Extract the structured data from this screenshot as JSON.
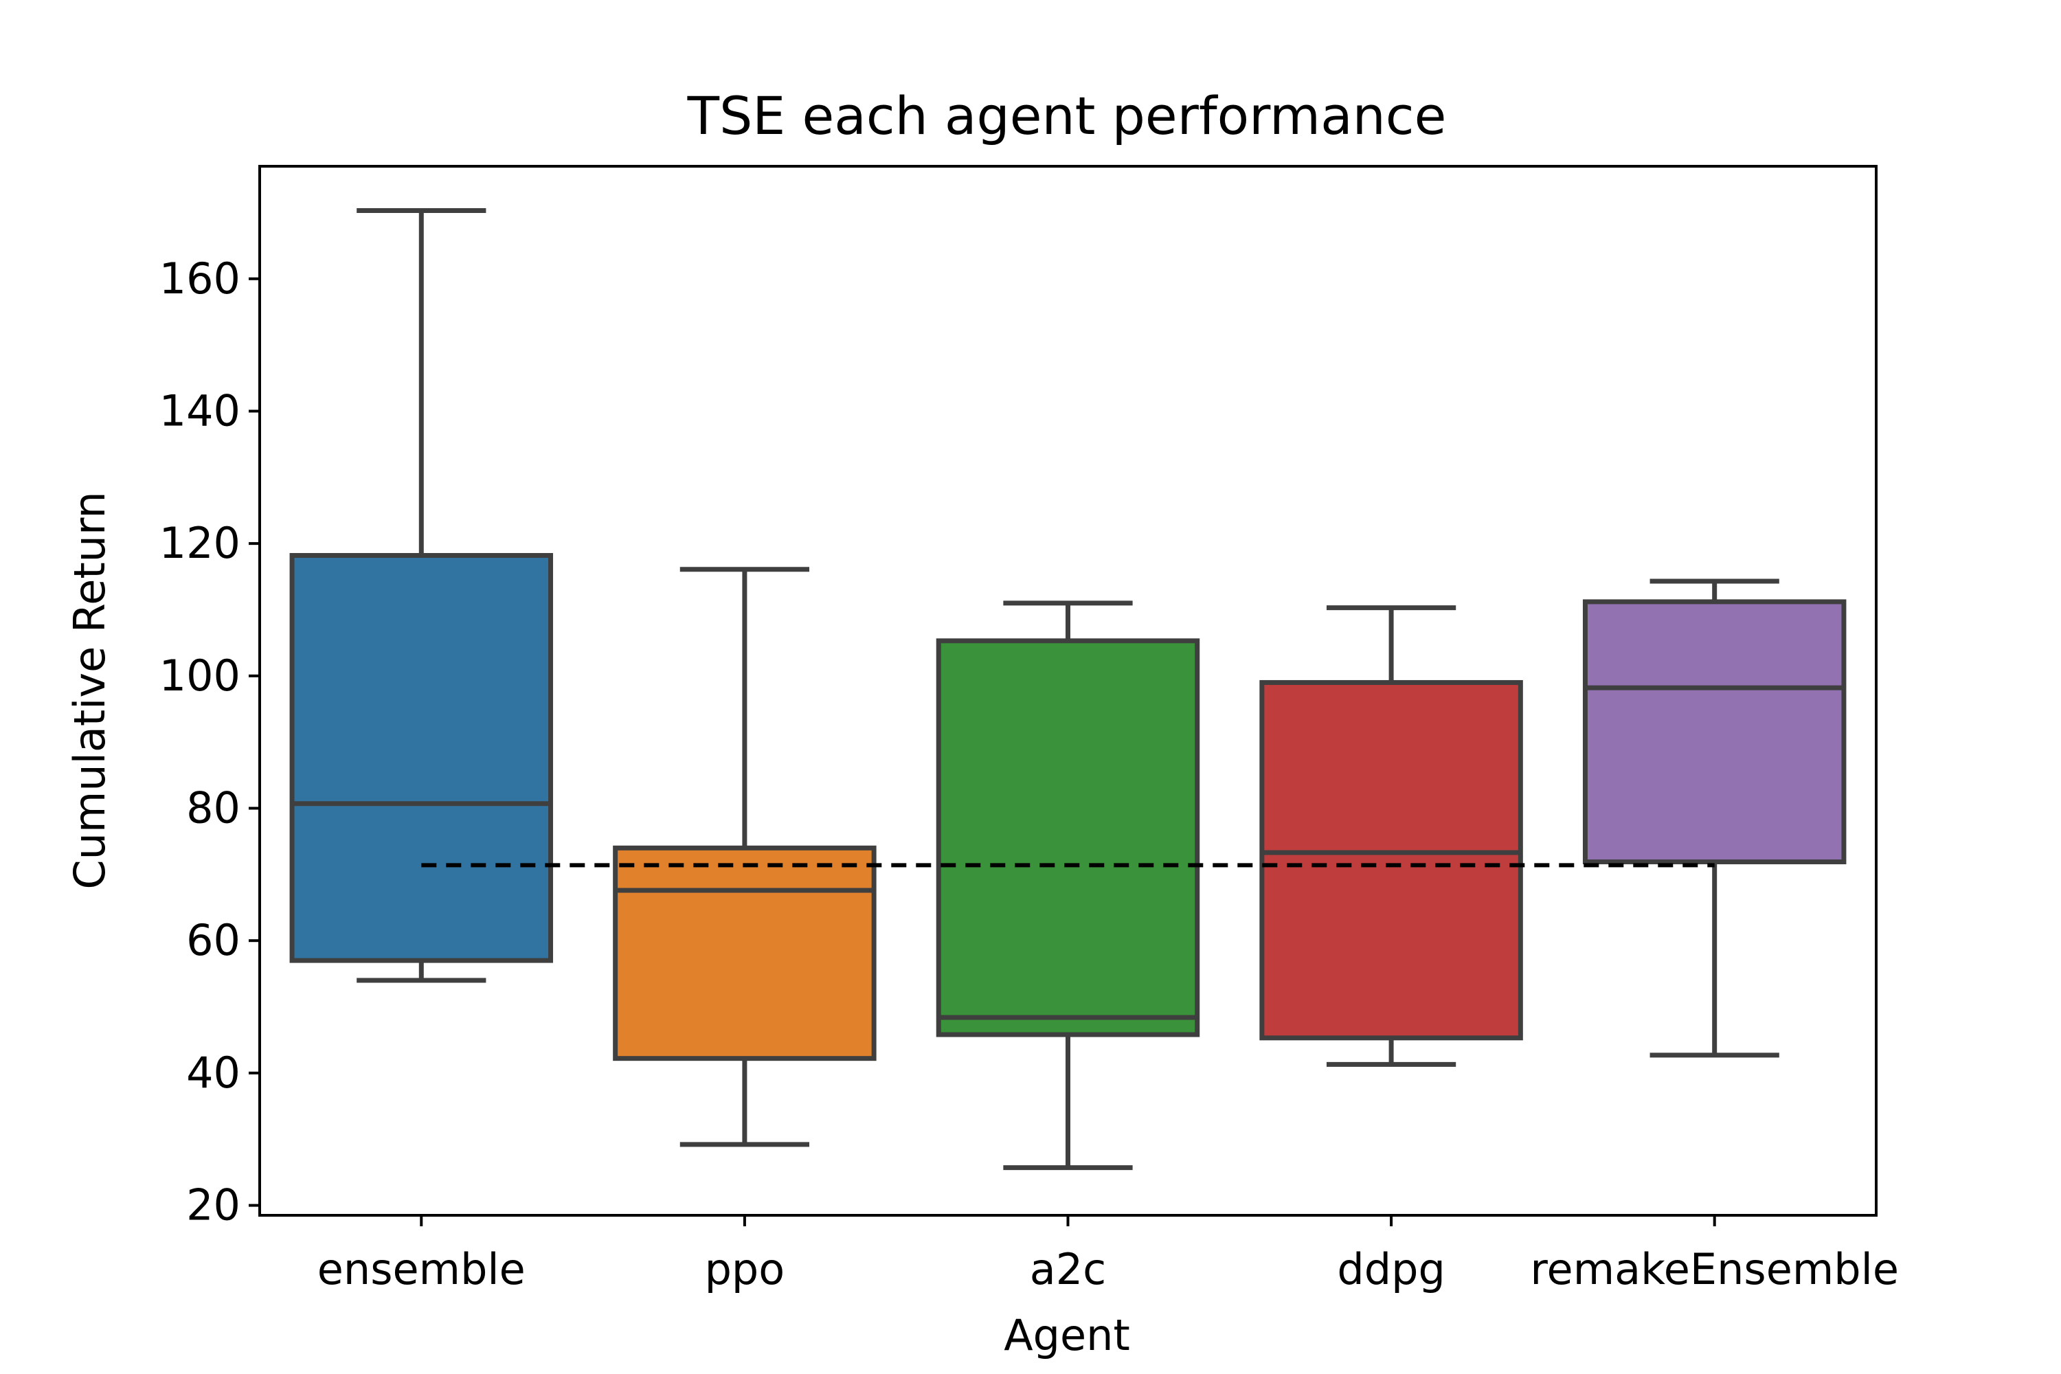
{
  "chart_data": {
    "type": "box",
    "title": "TSE each agent performance",
    "xlabel": "Agent",
    "ylabel": "Cumulative Return",
    "ylim": [
      18.5,
      177
    ],
    "yticks": [
      20,
      40,
      60,
      80,
      100,
      120,
      140,
      160
    ],
    "categories": [
      "ensemble",
      "ppo",
      "a2c",
      "ddpg",
      "remakeEnsemble"
    ],
    "boxes": [
      {
        "category": "ensemble",
        "whisker_low": 54,
        "q1": 57,
        "median": 80.7,
        "q3": 118.2,
        "whisker_high": 170.3,
        "color": "#3274a1"
      },
      {
        "category": "ppo",
        "whisker_low": 29.2,
        "q1": 42.2,
        "median": 67.6,
        "q3": 74,
        "whisker_high": 116.1,
        "color": "#e1812c"
      },
      {
        "category": "a2c",
        "whisker_low": 25.7,
        "q1": 45.8,
        "median": 48.4,
        "q3": 105.3,
        "whisker_high": 111,
        "color": "#3a923a"
      },
      {
        "category": "ddpg",
        "whisker_low": 41.3,
        "q1": 45.3,
        "median": 73.3,
        "q3": 99,
        "whisker_high": 110.3,
        "color": "#c03d3e"
      },
      {
        "category": "remakeEnsemble",
        "whisker_low": 42.7,
        "q1": 71.9,
        "median": 98.2,
        "q3": 111.2,
        "whisker_high": 114.3,
        "color": "#9372b2"
      }
    ],
    "reference_line": {
      "y": 71.4,
      "style": "dashed",
      "color": "#000000"
    },
    "grid": false,
    "line_color": "#3f3f3f"
  }
}
